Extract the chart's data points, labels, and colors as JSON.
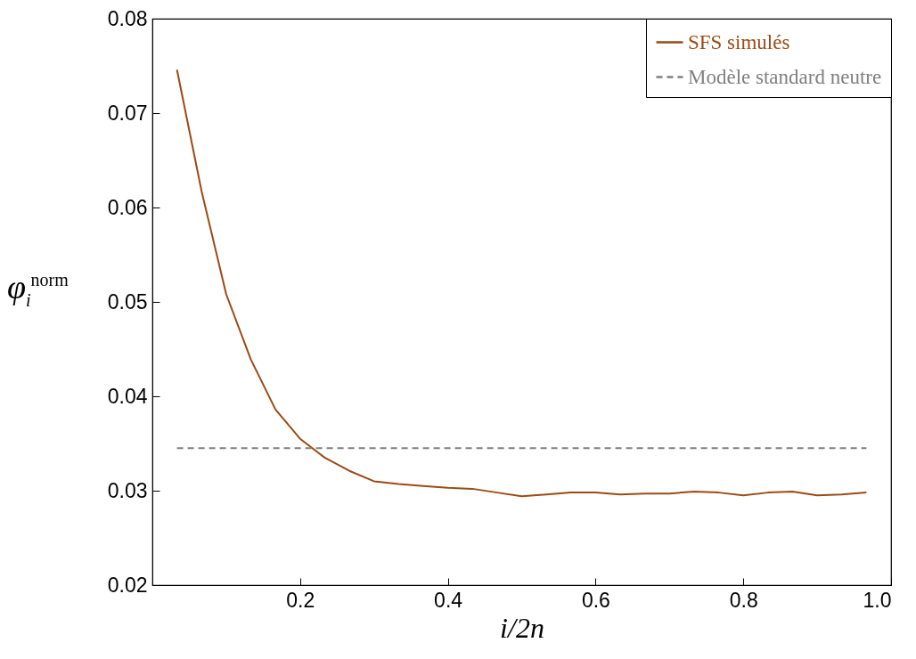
{
  "chart_data": {
    "type": "line",
    "xlabel": "i/2n",
    "ylabel": "φ$_{i}$$^{norm}$",
    "xlim": [
      0,
      1
    ],
    "xticks": [
      0.2,
      0.4,
      0.6,
      0.8,
      {
        "value": 1,
        "label": "1.0"
      }
    ],
    "ylim": [
      0.02,
      0.08
    ],
    "yticks": [
      0.02,
      0.03,
      0.04,
      0.05,
      0.06,
      0.07,
      0.08
    ],
    "grid": false,
    "legend": "top right",
    "marker": "none",
    "series": [
      {
        "name": "SFS simulés",
        "color": "#9c4a14",
        "line_style": "solid",
        "x": [
          0.0333,
          0.0667,
          0.1,
          0.1333,
          0.1667,
          0.2,
          0.2333,
          0.2667,
          0.3,
          0.3333,
          0.3667,
          0.4,
          0.4333,
          0.4667,
          0.5,
          0.5333,
          0.5667,
          0.6,
          0.6333,
          0.6667,
          0.7,
          0.7333,
          0.7667,
          0.8,
          0.8333,
          0.8667,
          0.9,
          0.9333,
          0.9667
        ],
        "values": [
          0.0746,
          0.0617,
          0.0508,
          0.0439,
          0.0386,
          0.0355,
          0.0335,
          0.0321,
          0.031,
          0.0307,
          0.0305,
          0.0303,
          0.0302,
          0.0298,
          0.0294,
          0.0296,
          0.0298,
          0.0298,
          0.0296,
          0.0297,
          0.0297,
          0.0299,
          0.0298,
          0.0295,
          0.0298,
          0.0299,
          0.0295,
          0.0296,
          0.0298
        ]
      },
      {
        "name": "Modèle standard neutre",
        "color": "#808080",
        "line_style": "dashed",
        "x": [
          0.0333,
          0.9667
        ],
        "values": [
          0.0345,
          0.0345
        ]
      }
    ]
  }
}
